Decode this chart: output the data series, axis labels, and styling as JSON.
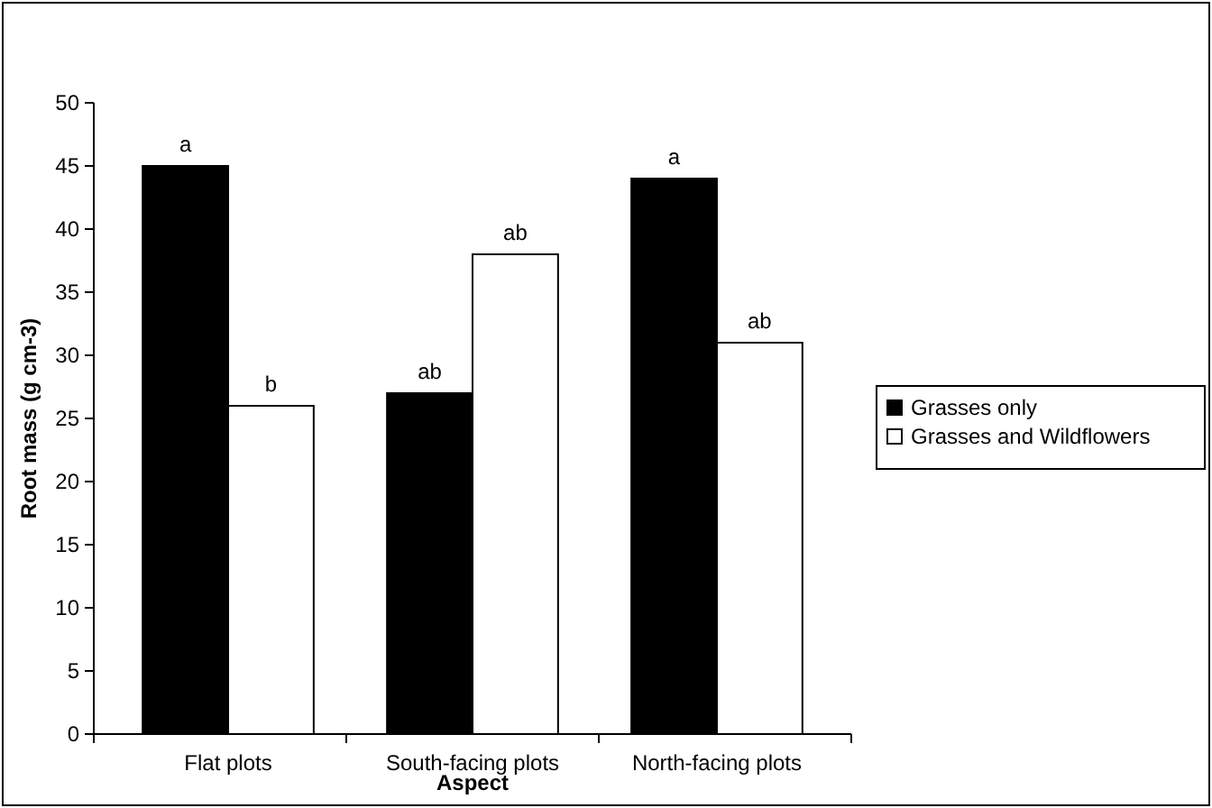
{
  "chart_data": {
    "type": "bar",
    "xlabel": "Aspect",
    "ylabel": "Root mass (g cm-3)",
    "categories": [
      "Flat plots",
      "South-facing plots",
      "North-facing plots"
    ],
    "series": [
      {
        "name": "Grasses only",
        "color": "#000000",
        "values": [
          45,
          27,
          44
        ],
        "value_labels": [
          "a",
          "ab",
          "a"
        ]
      },
      {
        "name": "Grasses and Wildflowers",
        "color": "#ffffff",
        "values": [
          26,
          38,
          31
        ],
        "value_labels": [
          "b",
          "ab",
          "ab"
        ]
      }
    ],
    "ylim": [
      0,
      50
    ],
    "yticks": [
      0,
      5,
      10,
      15,
      20,
      25,
      30,
      35,
      40,
      45,
      50
    ],
    "grid": false,
    "legend": "right"
  }
}
